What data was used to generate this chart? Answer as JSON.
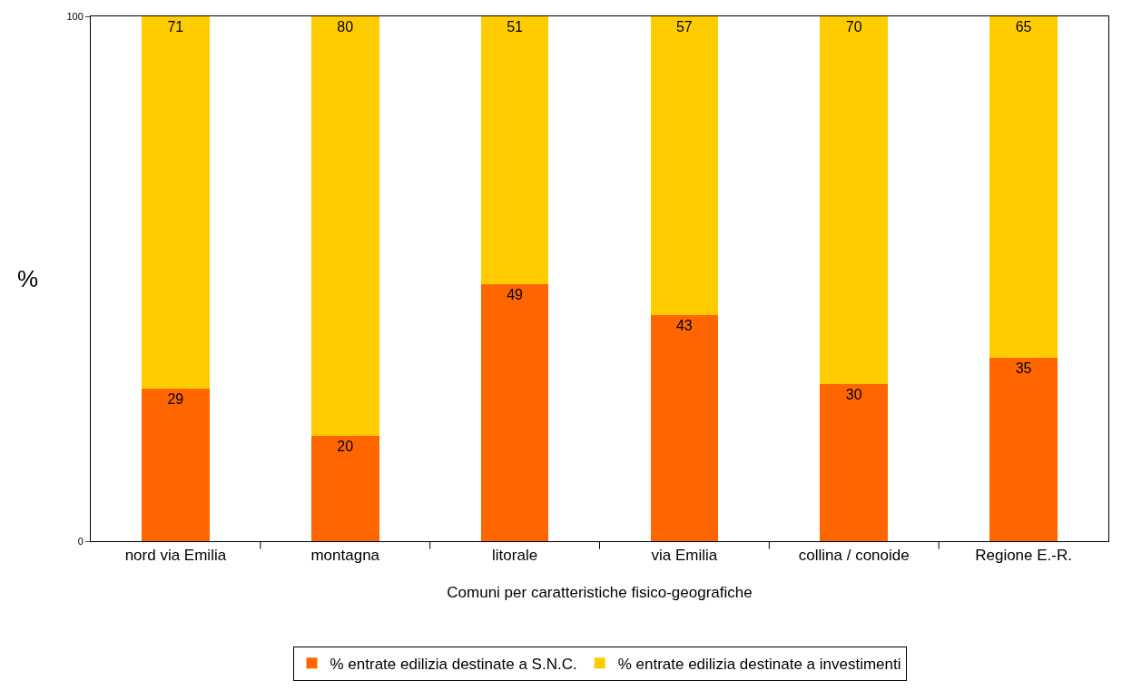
{
  "chart_data": {
    "type": "bar",
    "stacked": true,
    "xlabel": "Comuni per caratteristiche fisico-geografiche",
    "ylabel": "%",
    "categories": [
      "nord via Emilia",
      "montagna",
      "litorale",
      "via Emilia",
      "collina / conoide",
      "Regione E.-R."
    ],
    "series": [
      {
        "name": "% entrate edilizia destinate a S.N.C.",
        "color": "#ff6600",
        "values": [
          29,
          20,
          49,
          43,
          30,
          35
        ]
      },
      {
        "name": "% entrate edilizia destinate a investimenti",
        "color": "#ffcc00",
        "values": [
          71,
          80,
          51,
          57,
          70,
          65
        ]
      }
    ],
    "ylim": [
      0,
      100
    ],
    "yticks": [
      0,
      100
    ],
    "legend": "bottom",
    "data_labels": true
  }
}
